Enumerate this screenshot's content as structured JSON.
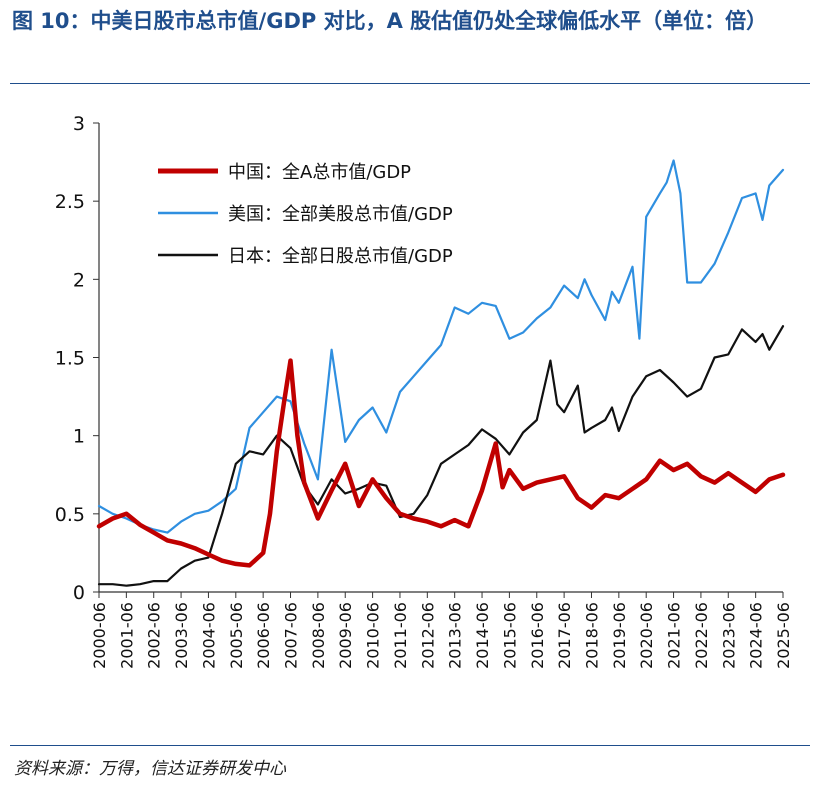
{
  "header": {
    "title": "图 10：中美日股市总市值/GDP 对比，A 股估值仍处全球偏低水平（单位：倍）"
  },
  "footer": {
    "source": "资料来源：万得，信达证券研发中心"
  },
  "chart_data": {
    "type": "line",
    "title": "图 10：中美日股市总市值/GDP 对比，A 股估值仍处全球偏低水平（单位：倍）",
    "xlabel": "",
    "ylabel": "",
    "xlim": [
      2000.5,
      2025.5
    ],
    "ylim": [
      0,
      3
    ],
    "yticks": [
      "0",
      "0.5",
      "1",
      "1.5",
      "2",
      "2.5",
      "3"
    ],
    "xticks": [
      "2000-06",
      "2001-06",
      "2002-06",
      "2003-06",
      "2004-06",
      "2005-06",
      "2006-06",
      "2007-06",
      "2008-06",
      "2009-06",
      "2010-06",
      "2011-06",
      "2012-06",
      "2013-06",
      "2014-06",
      "2015-06",
      "2016-06",
      "2017-06",
      "2018-06",
      "2019-06",
      "2020-06",
      "2021-06",
      "2022-06",
      "2023-06",
      "2024-06",
      "2025-06"
    ],
    "grid": false,
    "legend_position": "top-left",
    "series": [
      {
        "name": "中国：全A总市值/GDP",
        "color": "#c00000",
        "x": [
          2000.5,
          2001.0,
          2001.5,
          2002.0,
          2002.5,
          2003.0,
          2003.5,
          2004.0,
          2004.5,
          2005.0,
          2005.5,
          2006.0,
          2006.5,
          2006.75,
          2007.0,
          2007.25,
          2007.5,
          2007.75,
          2008.0,
          2008.5,
          2009.0,
          2009.5,
          2010.0,
          2010.5,
          2011.0,
          2011.5,
          2012.0,
          2012.5,
          2013.0,
          2013.5,
          2014.0,
          2014.5,
          2015.0,
          2015.25,
          2015.5,
          2016.0,
          2016.5,
          2017.0,
          2017.5,
          2018.0,
          2018.5,
          2019.0,
          2019.5,
          2020.0,
          2020.5,
          2021.0,
          2021.5,
          2022.0,
          2022.5,
          2023.0,
          2023.5,
          2024.0,
          2024.5,
          2025.0,
          2025.5
        ],
        "values": [
          0.42,
          0.47,
          0.5,
          0.43,
          0.38,
          0.33,
          0.31,
          0.28,
          0.24,
          0.2,
          0.18,
          0.17,
          0.25,
          0.5,
          0.9,
          1.2,
          1.48,
          1.0,
          0.7,
          0.47,
          0.65,
          0.82,
          0.55,
          0.72,
          0.6,
          0.5,
          0.47,
          0.45,
          0.42,
          0.46,
          0.42,
          0.65,
          0.95,
          0.67,
          0.78,
          0.66,
          0.7,
          0.72,
          0.74,
          0.6,
          0.54,
          0.62,
          0.6,
          0.66,
          0.72,
          0.84,
          0.78,
          0.82,
          0.74,
          0.7,
          0.76,
          0.7,
          0.64,
          0.72,
          0.75
        ]
      },
      {
        "name": "美国：全部美股总市值/GDP",
        "color": "#2f8fe0",
        "x": [
          2000.5,
          2001.0,
          2001.5,
          2002.0,
          2002.5,
          2003.0,
          2003.5,
          2004.0,
          2004.5,
          2005.0,
          2005.5,
          2006.0,
          2006.5,
          2007.0,
          2007.5,
          2008.0,
          2008.5,
          2009.0,
          2009.5,
          2010.0,
          2010.5,
          2011.0,
          2011.5,
          2012.0,
          2012.5,
          2013.0,
          2013.5,
          2014.0,
          2014.5,
          2015.0,
          2015.5,
          2016.0,
          2016.5,
          2017.0,
          2017.5,
          2018.0,
          2018.25,
          2018.5,
          2019.0,
          2019.25,
          2019.5,
          2020.0,
          2020.25,
          2020.5,
          2021.0,
          2021.25,
          2021.5,
          2021.75,
          2022.0,
          2022.5,
          2023.0,
          2023.5,
          2024.0,
          2024.5,
          2024.75,
          2025.0,
          2025.5
        ],
        "values": [
          0.55,
          0.5,
          0.47,
          0.43,
          0.4,
          0.38,
          0.45,
          0.5,
          0.52,
          0.58,
          0.66,
          1.05,
          1.15,
          1.25,
          1.22,
          0.95,
          0.72,
          1.55,
          0.96,
          1.1,
          1.18,
          1.02,
          1.28,
          1.38,
          1.48,
          1.58,
          1.82,
          1.78,
          1.85,
          1.83,
          1.62,
          1.66,
          1.75,
          1.82,
          1.96,
          1.88,
          2.0,
          1.9,
          1.74,
          1.92,
          1.85,
          2.08,
          1.62,
          2.4,
          2.55,
          2.62,
          2.76,
          2.55,
          1.98,
          1.98,
          2.1,
          2.3,
          2.52,
          2.55,
          2.38,
          2.6,
          2.7
        ]
      },
      {
        "name": "日本：全部日股总市值/GDP",
        "color": "#111111",
        "x": [
          2000.5,
          2001.0,
          2001.5,
          2002.0,
          2002.5,
          2003.0,
          2003.5,
          2004.0,
          2004.5,
          2005.0,
          2005.5,
          2006.0,
          2006.5,
          2007.0,
          2007.5,
          2008.0,
          2008.5,
          2009.0,
          2009.5,
          2010.0,
          2010.5,
          2011.0,
          2011.5,
          2012.0,
          2012.5,
          2013.0,
          2013.5,
          2014.0,
          2014.5,
          2015.0,
          2015.5,
          2016.0,
          2016.5,
          2017.0,
          2017.25,
          2017.5,
          2018.0,
          2018.25,
          2018.5,
          2019.0,
          2019.25,
          2019.5,
          2020.0,
          2020.5,
          2021.0,
          2021.5,
          2022.0,
          2022.5,
          2023.0,
          2023.5,
          2024.0,
          2024.5,
          2024.75,
          2025.0,
          2025.5
        ],
        "values": [
          0.05,
          0.05,
          0.04,
          0.05,
          0.07,
          0.07,
          0.15,
          0.2,
          0.22,
          0.5,
          0.82,
          0.9,
          0.88,
          1.0,
          0.92,
          0.68,
          0.56,
          0.72,
          0.63,
          0.66,
          0.7,
          0.68,
          0.48,
          0.5,
          0.62,
          0.82,
          0.88,
          0.94,
          1.04,
          0.98,
          0.88,
          1.02,
          1.1,
          1.48,
          1.2,
          1.15,
          1.32,
          1.02,
          1.05,
          1.1,
          1.18,
          1.03,
          1.25,
          1.38,
          1.42,
          1.34,
          1.25,
          1.3,
          1.5,
          1.52,
          1.68,
          1.6,
          1.65,
          1.55,
          1.7
        ]
      }
    ]
  }
}
